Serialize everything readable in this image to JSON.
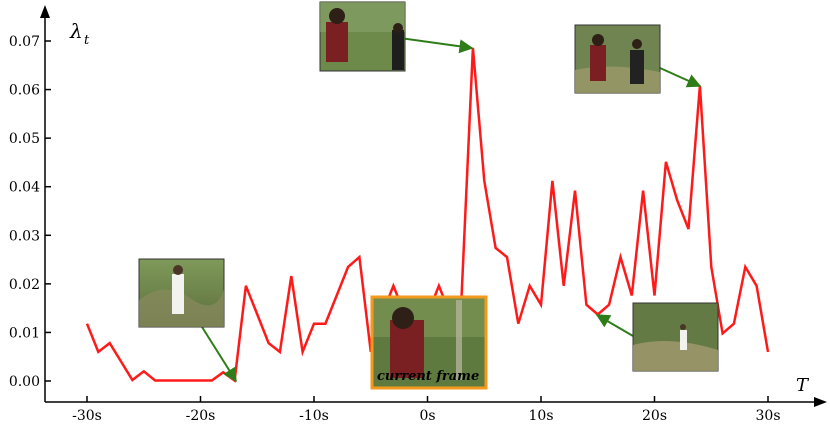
{
  "chart_data": {
    "type": "line",
    "ylabel": "λ",
    "ylabel_sub": "t",
    "xlabel": "T",
    "x_ticks": [
      "-30s",
      "-20s",
      "-10s",
      "0s",
      "10s",
      "20s",
      "30s"
    ],
    "y_ticks": [
      "0.00",
      "0.01",
      "0.02",
      "0.03",
      "0.04",
      "0.05",
      "0.06",
      "0.07"
    ],
    "xlim": [
      -30,
      30
    ],
    "ylim": [
      0,
      0.07
    ],
    "series": [
      {
        "color": "#ff1a1a",
        "x": [
          -30,
          -29,
          -28,
          -27,
          -26,
          -25,
          -24,
          -23,
          -22,
          -21,
          -20,
          -19,
          -18,
          -17,
          -16,
          -15,
          -14,
          -13,
          -12,
          -11,
          -10,
          -9,
          -8,
          -7,
          -6,
          -5,
          -4,
          -3,
          -2,
          -1,
          0,
          1,
          2,
          3,
          4,
          5,
          6,
          7,
          8,
          9,
          10,
          11,
          12,
          13,
          14,
          15,
          16,
          17,
          18,
          19,
          20,
          21,
          22,
          23,
          24,
          25,
          26,
          27,
          28,
          29,
          30
        ],
        "y": [
          0.0118,
          0.006,
          0.0078,
          0.004,
          0.0002,
          0.002,
          0.0001,
          0.0001,
          0.0001,
          0.0001,
          0.0001,
          0.0001,
          0.0018,
          0.0001,
          0.0196,
          0.0137,
          0.0078,
          0.006,
          0.0216,
          0.006,
          0.0118,
          0.0118,
          0.0176,
          0.0235,
          0.0255,
          0.006,
          0.0137,
          0.0196,
          0.0137,
          0.0098,
          0.0137,
          0.0196,
          0.0137,
          0.0176,
          0.0686,
          0.0412,
          0.0274,
          0.0255,
          0.0118,
          0.0196,
          0.0157,
          0.0412,
          0.0196,
          0.0392,
          0.0157,
          0.0137,
          0.0157,
          0.0255,
          0.0176,
          0.0392,
          0.0176,
          0.0451,
          0.0372,
          0.0313,
          0.0608,
          0.0235,
          0.0098,
          0.0118,
          0.0235,
          0.0196,
          0.006
        ]
      }
    ],
    "current_frame_label": "current frame",
    "arrow_color": "#2e7d18",
    "highlight_color": "#f39a1e"
  }
}
